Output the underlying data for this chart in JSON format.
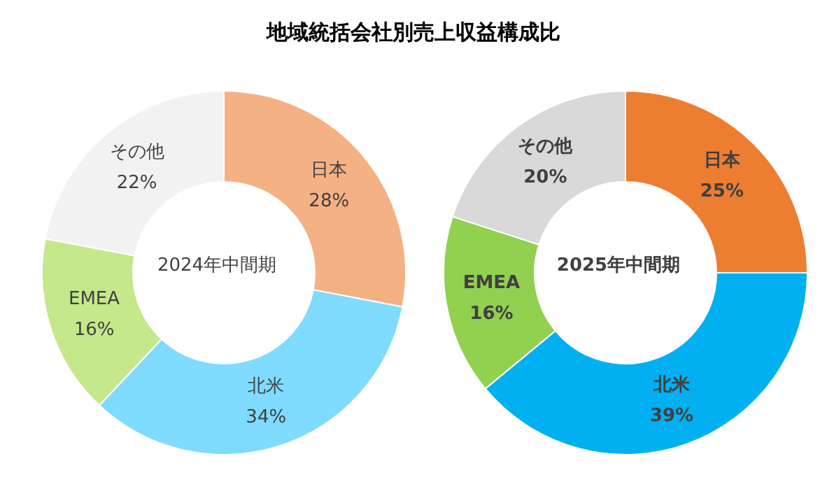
{
  "chart_data": [
    {
      "type": "donut",
      "title": "地域統括会社別売上収益構成比",
      "annotations": [
        "2024年中間期"
      ],
      "categories": [
        "日本",
        "北米",
        "EMEA",
        "その他"
      ],
      "values": [
        28,
        34,
        16,
        22
      ],
      "value_labels": [
        "28%",
        "34%",
        "16%",
        "22%"
      ],
      "colors": [
        "#f4b183",
        "#7fdbff",
        "#c5e88a",
        "#f2f2f2"
      ]
    },
    {
      "type": "donut",
      "annotations": [
        "2025年中間期"
      ],
      "categories": [
        "日本",
        "北米",
        "EMEA",
        "その他"
      ],
      "values": [
        25,
        39,
        16,
        20
      ],
      "value_labels": [
        "25%",
        "39%",
        "16%",
        "20%"
      ],
      "colors": [
        "#ed7d31",
        "#00b0f0",
        "#92d050",
        "#d9d9d9"
      ]
    }
  ]
}
